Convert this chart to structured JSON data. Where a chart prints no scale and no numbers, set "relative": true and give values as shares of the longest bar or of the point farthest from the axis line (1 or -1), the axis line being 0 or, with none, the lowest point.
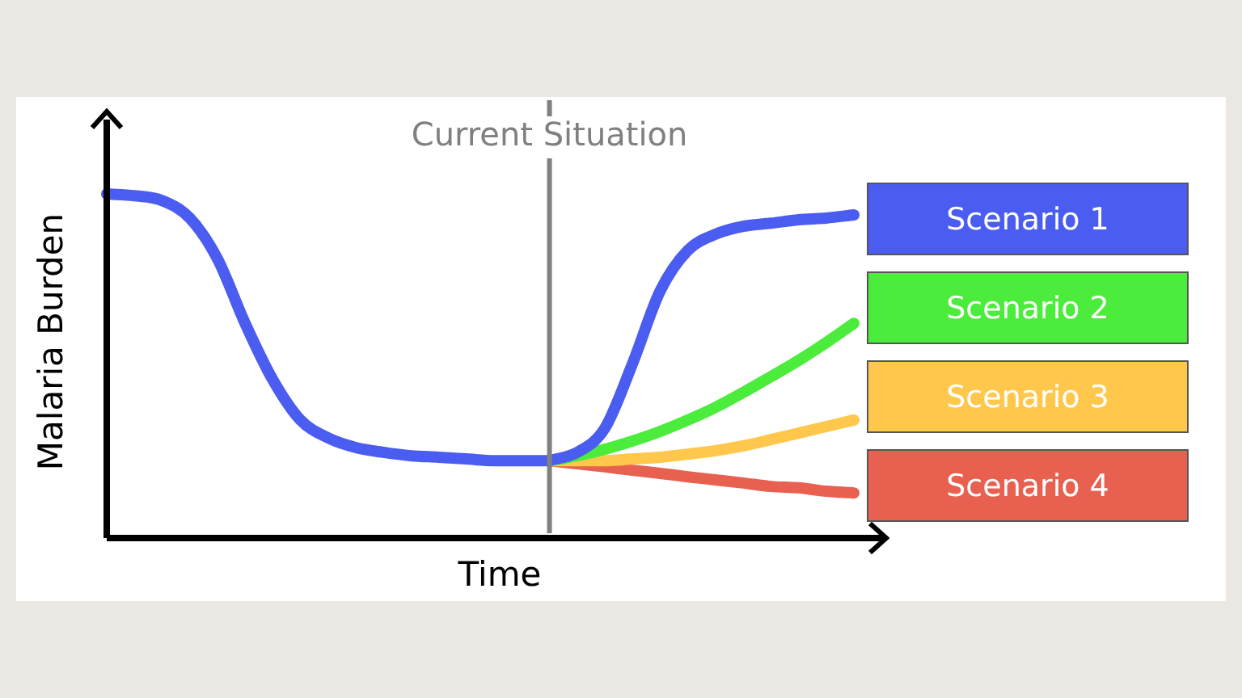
{
  "chart_data": {
    "type": "line",
    "relative": true,
    "xlabel": "Time",
    "ylabel": "Malaria Burden",
    "legend": "right",
    "marker": "none",
    "line_style": "solid",
    "annotations": [
      "Current Situation"
    ],
    "categories": [
      null,
      null,
      null,
      null,
      null,
      null,
      null,
      null,
      null,
      null,
      null,
      null,
      null,
      null,
      null,
      null,
      null,
      null,
      null,
      null,
      null,
      null,
      null,
      null,
      null,
      null,
      null,
      null
    ],
    "series": [
      {
        "color": "#4b5cf0",
        "values": [
          1.0,
          0.995,
          0.981,
          0.93,
          0.812,
          0.624,
          0.46,
          0.343,
          0.291,
          0.263,
          0.249,
          0.239,
          0.235,
          0.23,
          0.225,
          0.225,
          0.225,
          null,
          null,
          null,
          null,
          null,
          null,
          null,
          null,
          null,
          null,
          null
        ]
      },
      {
        "name": "Scenario 1",
        "color": "#4b5cf0",
        "values": [
          null,
          null,
          null,
          null,
          null,
          null,
          null,
          null,
          null,
          null,
          null,
          null,
          null,
          null,
          null,
          null,
          0.225,
          0.249,
          0.319,
          0.507,
          0.718,
          0.836,
          0.883,
          0.906,
          0.915,
          0.925,
          0.93,
          0.939
        ]
      },
      {
        "name": "Scenario 2",
        "color": "#4cec3c",
        "values": [
          null,
          null,
          null,
          null,
          null,
          null,
          null,
          null,
          null,
          null,
          null,
          null,
          null,
          null,
          null,
          null,
          0.225,
          0.239,
          0.258,
          0.282,
          0.31,
          0.343,
          0.38,
          0.423,
          0.469,
          0.516,
          0.568,
          0.624
        ]
      },
      {
        "name": "Scenario 3",
        "color": "#ffc84d",
        "values": [
          null,
          null,
          null,
          null,
          null,
          null,
          null,
          null,
          null,
          null,
          null,
          null,
          null,
          null,
          null,
          null,
          0.225,
          0.225,
          0.225,
          0.23,
          0.235,
          0.244,
          0.254,
          0.268,
          0.286,
          0.305,
          0.324,
          0.343
        ]
      },
      {
        "name": "Scenario 4",
        "color": "#e8604f",
        "values": [
          null,
          null,
          null,
          null,
          null,
          null,
          null,
          null,
          null,
          null,
          null,
          null,
          null,
          null,
          null,
          null,
          0.225,
          0.216,
          0.207,
          0.197,
          0.188,
          0.178,
          0.169,
          0.16,
          0.15,
          0.146,
          0.136,
          0.131
        ]
      }
    ]
  }
}
